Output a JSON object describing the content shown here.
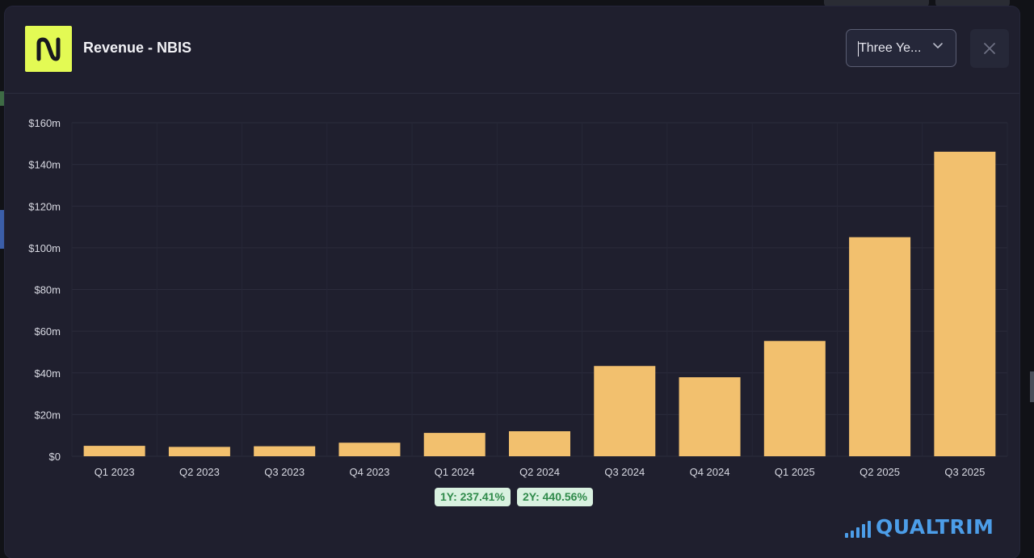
{
  "header": {
    "title": "Revenue - NBIS",
    "period_selected": "Three Ye..."
  },
  "growth": {
    "one_year": "1Y: 237.41%",
    "two_year": "2Y: 440.56%"
  },
  "brand": {
    "name": "QUALTRIM"
  },
  "colors": {
    "bar": "#f2c06e",
    "logo_bg": "#e3fa54",
    "brand": "#4c9de8",
    "pill_bg": "#d9f1e0",
    "pill_text": "#2f8a4a"
  },
  "chart_data": {
    "type": "bar",
    "categories": [
      "Q1 2023",
      "Q2 2023",
      "Q3 2023",
      "Q4 2023",
      "Q1 2024",
      "Q2 2024",
      "Q3 2024",
      "Q4 2024",
      "Q1 2025",
      "Q2 2025",
      "Q3 2025"
    ],
    "values": [
      5.0,
      4.5,
      4.8,
      6.5,
      11.2,
      12.0,
      43.3,
      37.9,
      55.3,
      105.1,
      146.1
    ],
    "unit": "m",
    "ylim": [
      0,
      160
    ],
    "yticks": [
      0,
      20,
      40,
      60,
      80,
      100,
      120,
      140,
      160
    ],
    "ytick_labels": [
      "$0",
      "$20m",
      "$40m",
      "$60m",
      "$80m",
      "$100m",
      "$120m",
      "$140m",
      "$160m"
    ],
    "grid": true,
    "legend": "none"
  }
}
